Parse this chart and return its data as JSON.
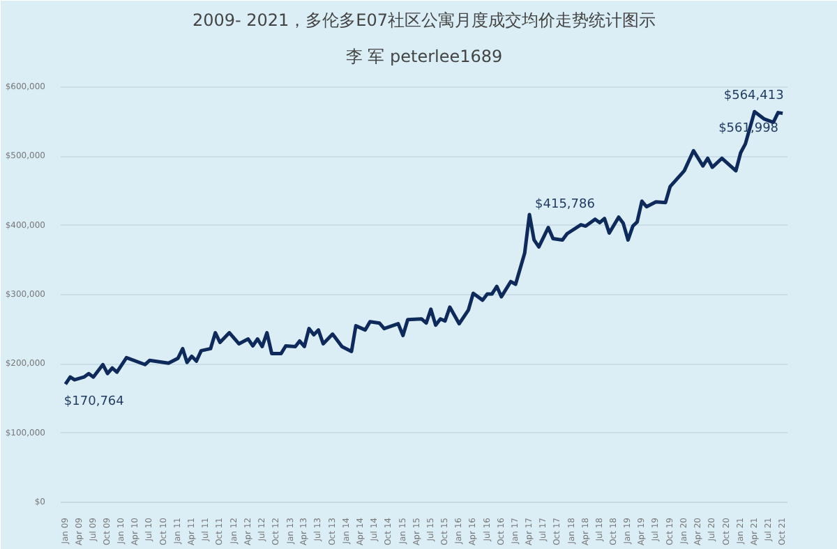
{
  "chart_data": {
    "type": "line",
    "title": "2009- 2021，多伦多E07社区公寓月度成交均价走势统计图示",
    "subtitle": "李 军 peterlee1689",
    "x": [
      "2009-01",
      "2009-02",
      "2009-03",
      "2009-05",
      "2009-06",
      "2009-07",
      "2009-09",
      "2009-10",
      "2009-11",
      "2009-12",
      "2010-02",
      "2010-06",
      "2010-07",
      "2010-11",
      "2011-01",
      "2011-02",
      "2011-03",
      "2011-04",
      "2011-05",
      "2011-06",
      "2011-08",
      "2011-09",
      "2011-10",
      "2011-12",
      "2012-02",
      "2012-04",
      "2012-05",
      "2012-06",
      "2012-07",
      "2012-08",
      "2012-09",
      "2012-11",
      "2012-12",
      "2013-02",
      "2013-03",
      "2013-04",
      "2013-05",
      "2013-06",
      "2013-07",
      "2013-08",
      "2013-10",
      "2013-12",
      "2014-02",
      "2014-03",
      "2014-05",
      "2014-06",
      "2014-08",
      "2014-09",
      "2014-12",
      "2015-01",
      "2015-02",
      "2015-05",
      "2015-06",
      "2015-07",
      "2015-08",
      "2015-09",
      "2015-10",
      "2015-11",
      "2016-01",
      "2016-03",
      "2016-04",
      "2016-06",
      "2016-07",
      "2016-08",
      "2016-09",
      "2016-10",
      "2016-12",
      "2017-01",
      "2017-03",
      "2017-04",
      "2017-05",
      "2017-06",
      "2017-08",
      "2017-09",
      "2017-11",
      "2017-12",
      "2018-03",
      "2018-04",
      "2018-06",
      "2018-07",
      "2018-08",
      "2018-09",
      "2018-11",
      "2018-12",
      "2019-01",
      "2019-02",
      "2019-03",
      "2019-04",
      "2019-05",
      "2019-07",
      "2019-09",
      "2019-10",
      "2020-01",
      "2020-03",
      "2020-05",
      "2020-06",
      "2020-07",
      "2020-09",
      "2020-12",
      "2021-01",
      "2021-02",
      "2021-04",
      "2021-06",
      "2021-08",
      "2021-09",
      "2021-10"
    ],
    "series": [
      {
        "color": "#0d2a5a",
        "values": [
          170764,
          181000,
          177000,
          181000,
          186000,
          181000,
          199000,
          186000,
          194000,
          188000,
          209000,
          199000,
          205000,
          201000,
          208000,
          222000,
          202000,
          211000,
          204000,
          219000,
          222000,
          245000,
          231000,
          245000,
          229000,
          236000,
          226000,
          236000,
          225000,
          245000,
          215000,
          215000,
          226000,
          225000,
          233000,
          225000,
          251000,
          242000,
          249000,
          229000,
          243000,
          225000,
          218000,
          255000,
          249000,
          261000,
          259000,
          251000,
          258000,
          241000,
          264000,
          265000,
          259000,
          279000,
          256000,
          265000,
          262000,
          282000,
          258000,
          278000,
          302000,
          292000,
          301000,
          301000,
          312000,
          297000,
          319000,
          315000,
          360000,
          415786,
          379000,
          369000,
          397000,
          381000,
          379000,
          388000,
          401000,
          399000,
          409000,
          404000,
          410000,
          389000,
          412000,
          403000,
          379000,
          399000,
          405000,
          435000,
          427000,
          434000,
          433000,
          456000,
          479000,
          508000,
          486000,
          497000,
          484000,
          497000,
          479000,
          505000,
          518000,
          564413,
          554000,
          549000,
          563000,
          561998
        ]
      }
    ],
    "xlim": [
      "2008-12",
      "2021-11"
    ],
    "xticks": [
      {
        "value": "2009-01",
        "label": "Jan 09"
      },
      {
        "value": "2009-04",
        "label": "Apr 09"
      },
      {
        "value": "2009-07",
        "label": "Jul 09"
      },
      {
        "value": "2009-10",
        "label": "Oct 09"
      },
      {
        "value": "2010-01",
        "label": "Jan 10"
      },
      {
        "value": "2010-04",
        "label": "Apr 10"
      },
      {
        "value": "2010-07",
        "label": "Jul 10"
      },
      {
        "value": "2010-10",
        "label": "Oct 10"
      },
      {
        "value": "2011-01",
        "label": "Jan 11"
      },
      {
        "value": "2011-04",
        "label": "Apr 11"
      },
      {
        "value": "2011-07",
        "label": "Jul 11"
      },
      {
        "value": "2011-10",
        "label": "Oct 11"
      },
      {
        "value": "2012-01",
        "label": "Jan 12"
      },
      {
        "value": "2012-04",
        "label": "Apr 12"
      },
      {
        "value": "2012-07",
        "label": "Jul 12"
      },
      {
        "value": "2012-10",
        "label": "Oct 12"
      },
      {
        "value": "2013-01",
        "label": "Jan 13"
      },
      {
        "value": "2013-04",
        "label": "Apr 13"
      },
      {
        "value": "2013-07",
        "label": "Jul 13"
      },
      {
        "value": "2013-10",
        "label": "Oct 13"
      },
      {
        "value": "2014-01",
        "label": "Jan 14"
      },
      {
        "value": "2014-04",
        "label": "Apr 14"
      },
      {
        "value": "2014-07",
        "label": "Jul 14"
      },
      {
        "value": "2014-10",
        "label": "Oct 14"
      },
      {
        "value": "2015-01",
        "label": "Jan 15"
      },
      {
        "value": "2015-04",
        "label": "Apr 15"
      },
      {
        "value": "2015-07",
        "label": "Jul 15"
      },
      {
        "value": "2015-10",
        "label": "Oct 15"
      },
      {
        "value": "2016-01",
        "label": "Jan 16"
      },
      {
        "value": "2016-04",
        "label": "Apr 16"
      },
      {
        "value": "2016-07",
        "label": "Jul 16"
      },
      {
        "value": "2016-10",
        "label": "Oct 16"
      },
      {
        "value": "2017-01",
        "label": "Jan 17"
      },
      {
        "value": "2017-04",
        "label": "Apr 17"
      },
      {
        "value": "2017-07",
        "label": "Jul 17"
      },
      {
        "value": "2017-10",
        "label": "Oct 17"
      },
      {
        "value": "2018-01",
        "label": "Jan 18"
      },
      {
        "value": "2018-04",
        "label": "Apr 18"
      },
      {
        "value": "2018-07",
        "label": "Jul 18"
      },
      {
        "value": "2018-10",
        "label": "Oct 18"
      },
      {
        "value": "2019-01",
        "label": "Jan 19"
      },
      {
        "value": "2019-04",
        "label": "Apr 19"
      },
      {
        "value": "2019-07",
        "label": "Jul 19"
      },
      {
        "value": "2019-10",
        "label": "Oct 19"
      },
      {
        "value": "2020-01",
        "label": "Jan 20"
      },
      {
        "value": "2020-04",
        "label": "Apr 20"
      },
      {
        "value": "2020-07",
        "label": "Jul 20"
      },
      {
        "value": "2020-10",
        "label": "Oct 20"
      },
      {
        "value": "2021-01",
        "label": "Jan 21"
      },
      {
        "value": "2021-04",
        "label": "Apr 21"
      },
      {
        "value": "2021-07",
        "label": "Jul 21"
      },
      {
        "value": "2021-10",
        "label": "Oct 21"
      }
    ],
    "ylim": [
      0,
      620000
    ],
    "yticks": [
      {
        "value": 0,
        "label": "$0"
      },
      {
        "value": 100000,
        "label": "$100,000"
      },
      {
        "value": 200000,
        "label": "$200,000"
      },
      {
        "value": 300000,
        "label": "$300,000"
      },
      {
        "value": 400000,
        "label": "$400,000"
      },
      {
        "value": 500000,
        "label": "$500,000"
      },
      {
        "value": 600000,
        "label": "$600,000"
      }
    ],
    "grid": "y",
    "line_style": "solid",
    "annotations": [
      {
        "text": "$170,764",
        "x": "2009-01",
        "y": 170764
      },
      {
        "text": "$415,786",
        "x": "2017-04",
        "y": 415786
      },
      {
        "text": "$564,413",
        "x": "2021-04",
        "y": 564413
      },
      {
        "text": "$561,998",
        "x": "2021-10",
        "y": 561998
      }
    ]
  }
}
